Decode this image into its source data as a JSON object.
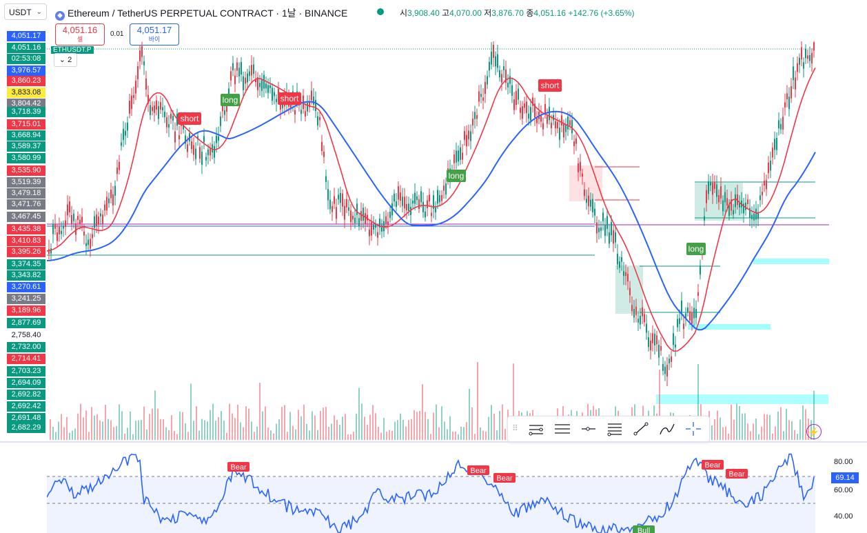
{
  "header": {
    "symbol_select": "USDT",
    "title": "Ethereum / TetherUS PERPETUAL CONTRACT · 1날 · BINANCE",
    "ohlc": {
      "open_label": "시",
      "open": "3,908.40",
      "high_label": "고",
      "high": "4,070.00",
      "low_label": "저",
      "low": "3,876.70",
      "close_label": "종",
      "close": "4,051.16",
      "change": "+142.76 (+3.65%)"
    }
  },
  "trade": {
    "sell_price": "4,051.16",
    "sell_label": "셀",
    "spread": "0.01",
    "buy_price": "4,051.17",
    "buy_label": "바이"
  },
  "chart_tag": "ETHUSDT.P",
  "collapse_count": "2",
  "price_labels": [
    {
      "text": "4,051.17",
      "color": "#2962ff"
    },
    {
      "text": "4,051.16",
      "color": "#089981"
    },
    {
      "text": "02:53:08",
      "color": "#089981"
    },
    {
      "text": "3,976.57",
      "color": "#2962ff"
    },
    {
      "text": "3,860.23",
      "color": "#f23645"
    },
    {
      "text": "3,833.08",
      "color": "#ffeb3b"
    },
    {
      "text": "3,804.42",
      "color": "#787b86"
    },
    {
      "text": "3,718.39",
      "color": "#089981"
    },
    {
      "text": "3,715.01",
      "color": "#f23645"
    },
    {
      "text": "3,668.94",
      "color": "#089981"
    },
    {
      "text": "3,589.37",
      "color": "#089981"
    },
    {
      "text": "3,580.99",
      "color": "#089981"
    },
    {
      "text": "3,535.90",
      "color": "#f23645"
    },
    {
      "text": "3,519.39",
      "color": "#787b86"
    },
    {
      "text": "3,479.18",
      "color": "#787b86"
    },
    {
      "text": "3,471.76",
      "color": "#787b86"
    },
    {
      "text": "3,467.45",
      "color": "#787b86"
    },
    {
      "text": "3,435.38",
      "color": "#f23645"
    },
    {
      "text": "3,410.83",
      "color": "#f23645"
    },
    {
      "text": "3,395.26",
      "color": "#f23645"
    },
    {
      "text": "3,374.35",
      "color": "#089981"
    },
    {
      "text": "3,343.82",
      "color": "#089981"
    },
    {
      "text": "3,270.61",
      "color": "#2962ff"
    },
    {
      "text": "3,241.25",
      "color": "#787b86"
    },
    {
      "text": "3,189.96",
      "color": "#f23645"
    },
    {
      "text": "2,877.69",
      "color": "#089981"
    },
    {
      "text": "2,758.40",
      "color": "#ffffff"
    },
    {
      "text": "2,732.00",
      "color": "#089981"
    },
    {
      "text": "2,714.41",
      "color": "#f23645"
    },
    {
      "text": "2,703.23",
      "color": "#089981"
    },
    {
      "text": "2,694.09",
      "color": "#089981"
    },
    {
      "text": "2,692.82",
      "color": "#089981"
    },
    {
      "text": "2,692.42",
      "color": "#089981"
    },
    {
      "text": "2,691.48",
      "color": "#089981"
    },
    {
      "text": "2,682.29",
      "color": "#089981"
    }
  ],
  "signals": [
    {
      "text": "short",
      "color": "#f23645"
    },
    {
      "text": "long",
      "color": "#43a047"
    },
    {
      "text": "short",
      "color": "#f23645"
    },
    {
      "text": "long",
      "color": "#43a047"
    },
    {
      "text": "short",
      "color": "#f23645"
    },
    {
      "text": "long",
      "color": "#43a047"
    }
  ],
  "drawing_tools": [
    "parallel-channel-icon",
    "horizontal-lines-icon",
    "horizontal-ray-icon",
    "fib-levels-icon",
    "trend-line-icon",
    "brush-icon",
    "crosshair-icon"
  ],
  "rsi": {
    "ticks": [
      "80.00",
      "60.00",
      "40.00"
    ],
    "value": "69.14",
    "signals": [
      {
        "text": "Bear",
        "color": "#f23645"
      },
      {
        "text": "Bear",
        "color": "#f23645"
      },
      {
        "text": "Bear",
        "color": "#f23645"
      },
      {
        "text": "Bear",
        "color": "#f23645"
      },
      {
        "text": "Bear",
        "color": "#f23645"
      },
      {
        "text": "Bull",
        "color": "#43a047"
      }
    ]
  },
  "colors": {
    "up": "#089981",
    "down": "#f23645",
    "ema_fast": "#f23645",
    "ema_slow": "#2962ff",
    "rsi_line": "#2962ff"
  }
}
